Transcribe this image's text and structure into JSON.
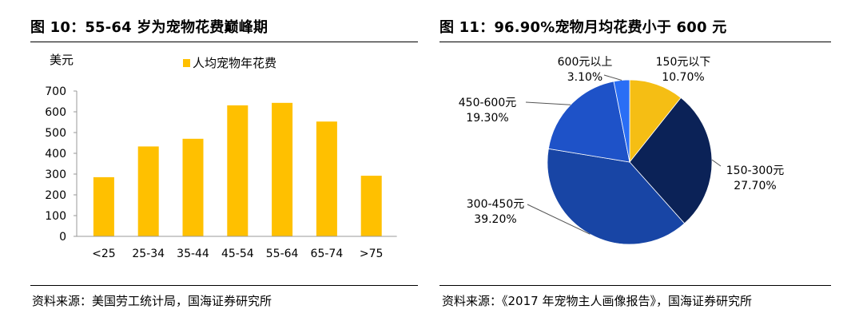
{
  "left_panel": {
    "title": "图 10：55-64 岁为宠物花费巅峰期",
    "source": "资料来源：美国劳工统计局，国海证券研究所"
  },
  "right_panel": {
    "title": "图 11：96.90%宠物月均花费小于 600 元",
    "source": "资料来源：《2017 年宠物主人画像报告》，国海证券研究所"
  },
  "chart_data": [
    {
      "type": "bar",
      "unit_label": "美元",
      "categories": [
        "<25",
        "25-34",
        "35-44",
        "45-54",
        "55-64",
        "65-74",
        ">75"
      ],
      "series": [
        {
          "name": "人均宠物年花费",
          "values": [
            285,
            433,
            470,
            631,
            643,
            553,
            292
          ]
        }
      ],
      "ylim": [
        0,
        700
      ],
      "yticks": [
        0,
        100,
        200,
        300,
        400,
        500,
        600,
        700
      ],
      "legend_position": "top",
      "grid": false,
      "colors": {
        "bar": "#FFC000"
      }
    },
    {
      "type": "pie",
      "slices": [
        {
          "label": "150元以下",
          "value": 10.7,
          "value_label": "10.70%",
          "color": "#F5BE14"
        },
        {
          "label": "150-300元",
          "value": 27.7,
          "value_label": "27.70%",
          "color": "#0B2257"
        },
        {
          "label": "300-450元",
          "value": 39.2,
          "value_label": "39.20%",
          "color": "#1845A5"
        },
        {
          "label": "450-600元",
          "value": 19.3,
          "value_label": "19.30%",
          "color": "#1E52C8"
        },
        {
          "label": "600元以上",
          "value": 3.1,
          "value_label": "3.10%",
          "color": "#2A6EF5"
        }
      ]
    }
  ]
}
